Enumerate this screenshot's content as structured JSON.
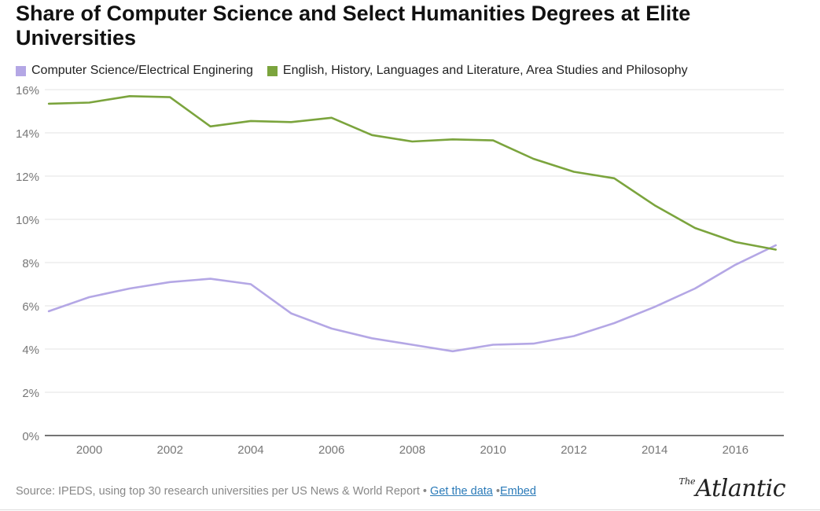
{
  "title": "Share of Computer Science and Select Humanities Degrees at Elite Universities",
  "legend": [
    {
      "label": "Computer Science/Electrical Enginering",
      "color": "#b4a7e5"
    },
    {
      "label": "English, History, Languages and Literature, Area Studies and Philosophy",
      "color": "#7ba43d"
    }
  ],
  "footer": {
    "source": "Source: IPEDS, using top 30 research universities per US News & World Report",
    "sep1": " • ",
    "get_data": "Get the data",
    "sep2": " •",
    "embed": "Embed"
  },
  "logo": {
    "the": "The",
    "name": "Atlantic"
  },
  "chart_data": {
    "type": "line",
    "title": "Share of Computer Science and Select Humanities Degrees at Elite Universities",
    "xlabel": "",
    "ylabel": "",
    "x": [
      1999,
      2000,
      2001,
      2002,
      2003,
      2004,
      2005,
      2006,
      2007,
      2008,
      2009,
      2010,
      2011,
      2012,
      2013,
      2014,
      2015,
      2016,
      2017
    ],
    "xlim": [
      1998.9,
      2017.2
    ],
    "ylim": [
      0,
      16
    ],
    "x_ticks": [
      2000,
      2002,
      2004,
      2006,
      2008,
      2010,
      2012,
      2014,
      2016
    ],
    "x_tick_labels": [
      "2000",
      "2002",
      "2004",
      "2006",
      "2008",
      "2010",
      "2012",
      "2014",
      "2016"
    ],
    "y_ticks": [
      0,
      2,
      4,
      6,
      8,
      10,
      12,
      14,
      16
    ],
    "y_tick_labels": [
      "0%",
      "2%",
      "4%",
      "6%",
      "8%",
      "10%",
      "12%",
      "14%",
      "16%"
    ],
    "grid": true,
    "legend_position": "top-left",
    "series": [
      {
        "name": "Computer Science/Electrical Enginering",
        "color": "#b4a7e5",
        "values": [
          5.75,
          6.4,
          6.8,
          7.1,
          7.25,
          7.0,
          5.65,
          4.95,
          4.5,
          4.2,
          3.9,
          4.2,
          4.25,
          4.6,
          5.2,
          5.95,
          6.8,
          7.9,
          8.8
        ]
      },
      {
        "name": "English, History, Languages and Literature, Area Studies and Philosophy",
        "color": "#7ba43d",
        "values": [
          15.35,
          15.4,
          15.7,
          15.65,
          14.3,
          14.55,
          14.5,
          14.7,
          13.9,
          13.6,
          13.7,
          13.65,
          12.8,
          12.2,
          11.9,
          10.65,
          9.6,
          8.95,
          8.6
        ]
      }
    ]
  }
}
